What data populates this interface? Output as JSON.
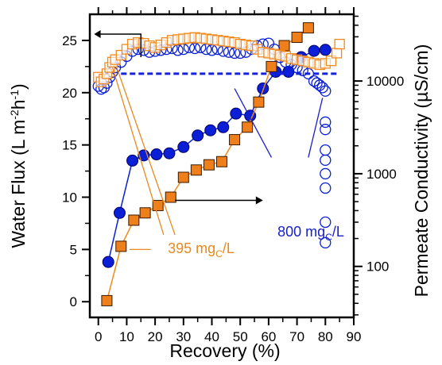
{
  "chart_data": {
    "type": "scatter",
    "xlabel": "Recovery  (%)",
    "ylabel": {
      "main": "Water Flux  (L m",
      "sup1": "-2",
      "mid": "h",
      "sup2": "-1",
      "end": ")"
    },
    "y2label": "Permeate Conductivity  (µS/cm)",
    "xlim": [
      -3,
      90
    ],
    "ylim": [
      -1.5,
      27.5
    ],
    "y2lim_log10": [
      1.45,
      4.72
    ],
    "y2scale": "log",
    "x_ticks": [
      "0",
      "10",
      "20",
      "30",
      "40",
      "50",
      "60",
      "70",
      "80",
      "90"
    ],
    "y_ticks": [
      "0",
      "5",
      "10",
      "15",
      "20",
      "25"
    ],
    "y2_ticks": [
      "100",
      "1000",
      "10000"
    ],
    "colors": {
      "blue": "#0a1fd6",
      "orange": "#f08a1e",
      "orange_fill": "#ee7f1a",
      "dash": "#1520e0"
    },
    "annotations": [
      {
        "text": "800 mg",
        "sub": "C",
        "tail": "/L",
        "color": "#1a20c8"
      },
      {
        "text": "395 mg",
        "sub": "C",
        "tail": "/L",
        "color": "#e8891e"
      }
    ],
    "series": [
      {
        "marker": "circle-filled",
        "axis": "left",
        "x": [
          3.5,
          7.5,
          12,
          16,
          20.5,
          25,
          30,
          35,
          39.5,
          44,
          48.5,
          53.5,
          58,
          62.5,
          67,
          71.5,
          76,
          80
        ],
        "y": [
          3.8,
          8.5,
          13.5,
          14.0,
          14.1,
          14.2,
          14.8,
          15.9,
          16.4,
          16.7,
          18.0,
          17.8,
          20.4,
          22.0,
          22.0,
          23.4,
          24.0,
          24.1
        ]
      },
      {
        "marker": "square-filled",
        "axis": "left",
        "x": [
          3,
          8,
          12.5,
          16.5,
          21,
          25.5,
          30,
          34.5,
          39,
          43.5,
          48,
          52.5,
          56.5,
          61,
          65.5,
          70,
          74
        ],
        "y": [
          0.1,
          5.3,
          7.8,
          8.5,
          9.2,
          10.0,
          11.9,
          12.6,
          13.1,
          13.4,
          15.5,
          16.7,
          19.1,
          22.5,
          24.5,
          25.3,
          26.2
        ]
      },
      {
        "marker": "circle-open",
        "axis": "right",
        "x": [
          0,
          1,
          2,
          3,
          4,
          5,
          6,
          8,
          10,
          12,
          14,
          16,
          18,
          20,
          22,
          24,
          26,
          28,
          30,
          32,
          34,
          36,
          38,
          40,
          42,
          44,
          46,
          48,
          50,
          52,
          54,
          56,
          58,
          60,
          62,
          64,
          66,
          68,
          70,
          72,
          74,
          76,
          77,
          78,
          79,
          80,
          80,
          80,
          80,
          80,
          80,
          80,
          80,
          80
        ],
        "y": [
          8800,
          8200,
          8500,
          9500,
          11000,
          12500,
          14000,
          16000,
          18500,
          21000,
          22000,
          21500,
          20500,
          21000,
          21500,
          22000,
          22500,
          21500,
          22000,
          23000,
          22500,
          23000,
          22000,
          21500,
          22000,
          21000,
          20500,
          20000,
          20000,
          20500,
          22000,
          24000,
          25000,
          25500,
          22000,
          18000,
          16000,
          15000,
          14000,
          13000,
          12000,
          10000,
          9500,
          9000,
          8500,
          7800,
          3600,
          3000,
          1800,
          1400,
          1000,
          700,
          300,
          180
        ]
      },
      {
        "marker": "square-open",
        "axis": "right",
        "x": [
          0,
          1,
          2,
          3,
          4,
          5,
          6,
          8,
          10,
          12,
          14,
          16,
          18,
          20,
          22,
          24,
          26,
          28,
          30,
          32,
          34,
          36,
          38,
          40,
          42,
          44,
          46,
          48,
          50,
          52,
          54,
          56,
          58,
          60,
          62,
          64,
          66,
          68,
          70,
          72,
          74,
          76,
          78,
          80,
          82,
          84,
          85
        ],
        "y": [
          11000,
          9800,
          10500,
          12000,
          14000,
          16000,
          17000,
          19000,
          22000,
          25000,
          26000,
          25500,
          24000,
          23000,
          24500,
          26000,
          27500,
          28000,
          28500,
          29000,
          29500,
          29000,
          28500,
          28000,
          27500,
          27000,
          26500,
          26000,
          25000,
          24500,
          24000,
          22000,
          20500,
          20000,
          19500,
          19000,
          18500,
          17500,
          17000,
          16500,
          16000,
          15500,
          15000,
          15500,
          16500,
          20000,
          25000
        ]
      },
      {
        "marker": "dashed-line",
        "axis": "right",
        "x": [
          8,
          84
        ],
        "y": [
          12000,
          12000
        ]
      }
    ]
  }
}
